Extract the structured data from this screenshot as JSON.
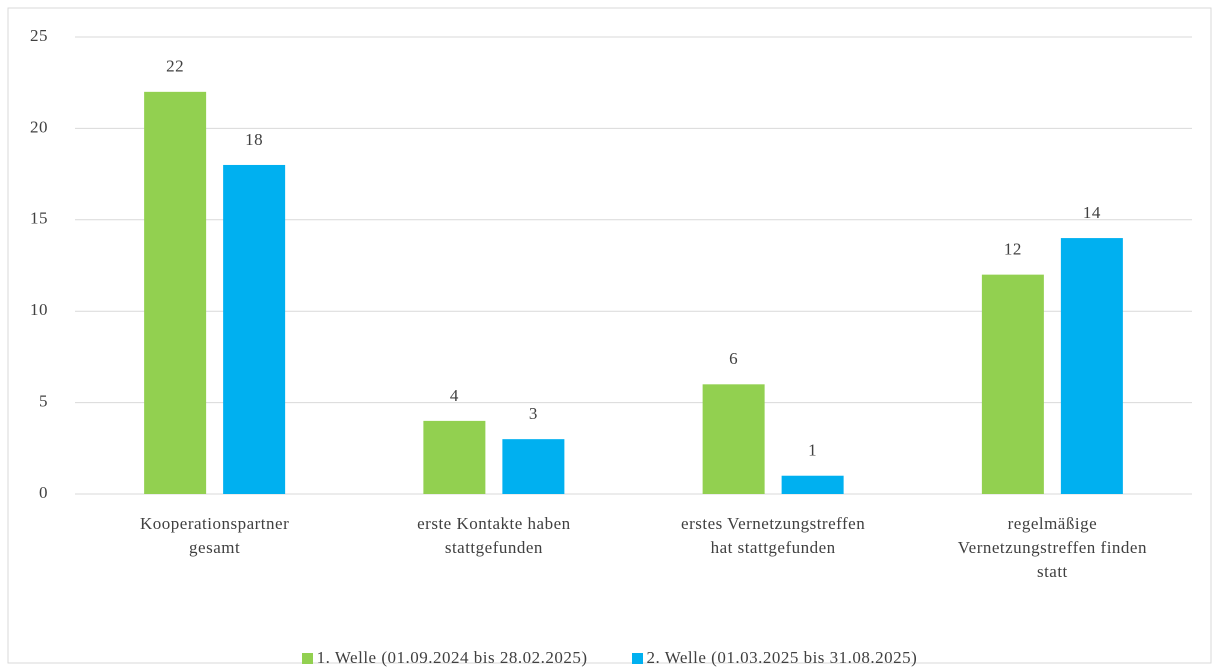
{
  "chart_data": {
    "type": "bar",
    "categories": [
      "Kooperationspartner\ngesamt",
      "erste Kontakte haben\nstattgefunden",
      "erstes Vernetzungstreffen\nhat stattgefunden",
      "regelmäßige\nVernetzungstreffen finden\nstatt"
    ],
    "series": [
      {
        "name": "1. Welle (01.09.2024 bis 28.02.2025)",
        "color": "#92d050",
        "values": [
          22,
          4,
          6,
          12
        ]
      },
      {
        "name": "2. Welle (01.03.2025 bis 31.08.2025)",
        "color": "#00b0f0",
        "values": [
          18,
          3,
          1,
          14
        ]
      }
    ],
    "ylim": [
      0,
      25
    ],
    "yticks": [
      0,
      5,
      10,
      15,
      20,
      25
    ],
    "grid": true,
    "legend": "bottom"
  }
}
